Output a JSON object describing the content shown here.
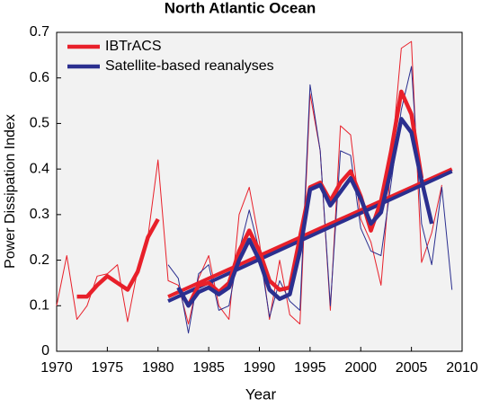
{
  "chart_data": {
    "type": "line",
    "title": "North Atlantic Ocean",
    "xlabel": "Year",
    "ylabel": "Power Dissipation Index",
    "xlim": [
      1970,
      2010
    ],
    "ylim": [
      0,
      0.7
    ],
    "xticks": [
      1970,
      1975,
      1980,
      1985,
      1990,
      1995,
      2000,
      2005,
      2010
    ],
    "yticks": [
      0,
      0.1,
      0.2,
      0.3,
      0.4,
      0.5,
      0.6,
      0.7
    ],
    "legend": "upper left",
    "x": [
      1970,
      1971,
      1972,
      1973,
      1974,
      1975,
      1976,
      1977,
      1978,
      1979,
      1980,
      1981,
      1982,
      1983,
      1984,
      1985,
      1986,
      1987,
      1988,
      1989,
      1990,
      1991,
      1992,
      1993,
      1994,
      1995,
      1996,
      1997,
      1998,
      1999,
      2000,
      2001,
      2002,
      2003,
      2004,
      2005,
      2006,
      2007,
      2008,
      2009
    ],
    "series": [
      {
        "name": "IBTrACS",
        "color": "#e8202a",
        "values": [
          0.1,
          0.21,
          0.07,
          0.1,
          0.165,
          0.17,
          0.19,
          0.065,
          0.18,
          0.25,
          0.42,
          0.155,
          0.145,
          0.06,
          0.16,
          0.21,
          0.1,
          0.07,
          0.3,
          0.36,
          0.24,
          0.07,
          0.2,
          0.08,
          0.06,
          0.565,
          0.44,
          0.09,
          0.495,
          0.475,
          0.29,
          0.24,
          0.145,
          0.415,
          0.665,
          0.68,
          0.195,
          0.26,
          0.365,
          null
        ],
        "smoothed": [
          null,
          null,
          0.12,
          0.12,
          0.145,
          0.165,
          0.15,
          0.135,
          0.175,
          0.25,
          0.29,
          null,
          null,
          0.1,
          0.145,
          0.15,
          0.13,
          0.15,
          0.22,
          0.265,
          0.22,
          0.155,
          0.135,
          0.14,
          0.25,
          0.36,
          0.37,
          0.33,
          0.37,
          0.395,
          0.34,
          0.265,
          0.33,
          0.44,
          0.57,
          0.52,
          0.38,
          null,
          null,
          null
        ],
        "trend_x": [
          1981,
          2009
        ],
        "trend": [
          0.12,
          0.4
        ]
      },
      {
        "name": "Satellite-based reanalyses",
        "color": "#2b2f8f",
        "values": [
          null,
          null,
          null,
          null,
          null,
          null,
          null,
          null,
          null,
          null,
          null,
          0.19,
          0.16,
          0.04,
          0.17,
          0.19,
          0.09,
          0.1,
          0.22,
          0.31,
          0.22,
          0.075,
          0.155,
          0.11,
          0.09,
          0.585,
          0.44,
          0.1,
          0.44,
          0.43,
          0.27,
          0.22,
          0.21,
          0.37,
          0.53,
          0.625,
          0.28,
          0.19,
          0.36,
          0.135
        ],
        "smoothed": [
          null,
          null,
          null,
          null,
          null,
          null,
          null,
          null,
          null,
          null,
          null,
          null,
          0.14,
          0.1,
          0.13,
          0.14,
          0.125,
          0.14,
          0.2,
          0.245,
          0.2,
          0.135,
          0.115,
          0.125,
          0.22,
          0.355,
          0.365,
          0.32,
          0.35,
          0.38,
          0.335,
          0.28,
          0.305,
          0.4,
          0.51,
          0.48,
          0.375,
          0.28,
          null,
          null
        ],
        "trend_x": [
          1981,
          2009
        ],
        "trend": [
          0.11,
          0.395
        ]
      }
    ]
  }
}
